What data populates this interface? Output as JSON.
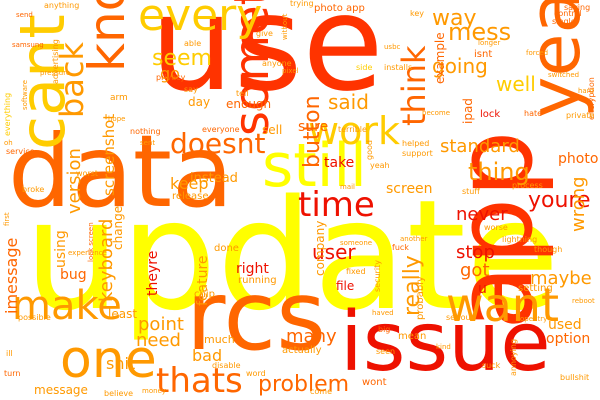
{
  "palette": {
    "yellow": "#ffff00",
    "gold": "#ffcc00",
    "orange": "#ff9900",
    "dark_orange": "#ff6600",
    "red_orange": "#ff3300",
    "red": "#ee1100"
  },
  "words": {
    "update": "update",
    "use": "use",
    "data": "data",
    "app": "app",
    "rcs": "rcs",
    "issue": "issue",
    "year": "year",
    "cant": "cant",
    "something": "something",
    "still": "still",
    "know": "know",
    "one": "one",
    "make": "make",
    "want": "want",
    "every": "every",
    "work": "work",
    "time": "time",
    "thats": "thats",
    "problem": "problem",
    "think": "think",
    "back": "back",
    "way": "way",
    "mess": "mess",
    "going": "going",
    "well": "well",
    "seem": "seem",
    "standard": "standard",
    "thing": "thing",
    "doesnt": "doesnt",
    "said": "said",
    "button": "button",
    "version": "version",
    "screenshot": "screenshot",
    "really": "really",
    "user": "user",
    "youre": "youre",
    "photo": "photo",
    "wrong": "wrong",
    "maybe": "maybe",
    "never": "never",
    "stop": "stop",
    "got": "got",
    "many": "many",
    "need": "need",
    "point": "point",
    "keyboard": "keyboard",
    "imessage": "imessage",
    "keep": "keep",
    "instead": "instead",
    "take": "take",
    "screen": "screen",
    "bad": "bad",
    "right": "right",
    "feature": "feature",
    "shit": "shit",
    "option": "option",
    "used": "used",
    "theyre": "theyre",
    "company": "company",
    "change": "change",
    "using": "using",
    "bug": "bug",
    "file": "file",
    "sure": "sure",
    "enough": "enough",
    "day": "day",
    "go": "go",
    "least": "least",
    "sell": "sell",
    "ipad": "ipad",
    "example": "example",
    "setting": "setting",
    "u": "u",
    "done": "done",
    "message": "message",
    "much": "much",
    "release": "release",
    "chip": "chip",
    "running": "running",
    "mean": "mean",
    "probably": "probably",
    "actually": "actually",
    "wont": "wont",
    "photo_app": "photo app",
    "anything": "anything",
    "everything": "everything",
    "possible": "possible",
    "service": "service",
    "broke": "broke",
    "advertising": "advertising",
    "samsung": "samsung",
    "privacy": "privacy",
    "able": "able",
    "anyone": "anyone",
    "tell": "tell",
    "arm": "arm",
    "say": "say",
    "nothing": "nothing",
    "everyone": "everyone",
    "worst": "worst",
    "experience": "experience",
    "encryption": "encryption",
    "private": "private",
    "saying": "saying",
    "support": "support",
    "isnt": "isnt",
    "lock": "lock",
    "hate": "hate",
    "stuff": "stuff",
    "process": "process",
    "worse": "worse",
    "though": "though",
    "lightning": "lightning",
    "serious": "serious",
    "opentry": "opentry",
    "annoying": "annoying",
    "bullshit": "bullshit",
    "come": "come",
    "word": "word",
    "believe": "believe",
    "disable": "disable",
    "turn": "turn",
    "ill": "ill",
    "trying": "trying",
    "send": "send",
    "security": "security",
    "fixed": "fixed",
    "fuck": "fuck",
    "yeah": "yeah",
    "good": "good",
    "helped": "helped",
    "terrible": "terrible",
    "key": "key",
    "single": "single",
    "control": "control",
    "forced": "forced",
    "switched": "switched",
    "become": "become",
    "installs": "installs",
    "give": "give",
    "without": "without",
    "side": "side",
    "hope": "hope",
    "big": "big",
    "seen": "seen",
    "haved": "haved",
    "suck": "suck",
    "someone": "someone",
    "another": "another",
    "money": "money",
    "lock_screen": "lock screen",
    "sent": "sent",
    "pressure": "pressure",
    "pixel": "pixel",
    "usbc": "usbc",
    "oh": "oh",
    "first": "first",
    "kind": "kind",
    "longer": "longer",
    "mail": "mail",
    "hard": "hard",
    "software": "software",
    "reboot": "reboot"
  }
}
